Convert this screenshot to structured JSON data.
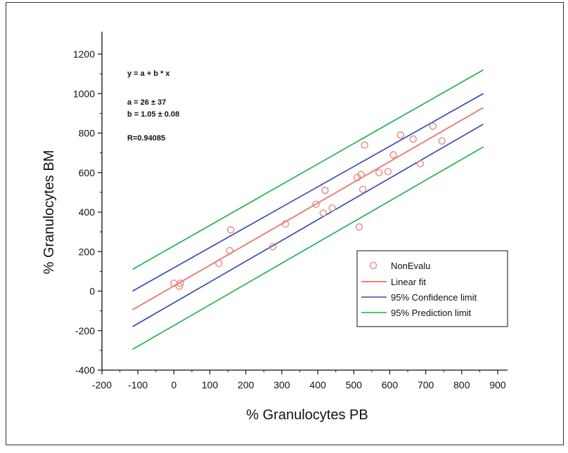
{
  "chart_data": {
    "type": "scatter",
    "xlabel": "% Granulocytes PB",
    "ylabel": "% Granulocytes BM",
    "xlim": [
      -200,
      900
    ],
    "ylim": [
      -400,
      1200
    ],
    "xticks": [
      -200,
      -100,
      0,
      100,
      200,
      300,
      400,
      500,
      600,
      700,
      800,
      900
    ],
    "yticks": [
      -400,
      -200,
      0,
      200,
      400,
      600,
      800,
      1000,
      1200
    ],
    "annotations": {
      "equation": "y = a + b * x",
      "a": "a = 26 ± 37",
      "b": "b = 1.05 ± 0.08",
      "r": "R=0.94085"
    },
    "legend_position": "bottom-right",
    "series": [
      {
        "name": "NonEvalu",
        "kind": "points",
        "color": "#e8807a",
        "points": [
          [
            0,
            40
          ],
          [
            15,
            25
          ],
          [
            18,
            40
          ],
          [
            125,
            140
          ],
          [
            155,
            205
          ],
          [
            158,
            310
          ],
          [
            275,
            225
          ],
          [
            310,
            340
          ],
          [
            395,
            440
          ],
          [
            415,
            395
          ],
          [
            420,
            510
          ],
          [
            440,
            420
          ],
          [
            510,
            575
          ],
          [
            515,
            325
          ],
          [
            520,
            590
          ],
          [
            525,
            515
          ],
          [
            530,
            740
          ],
          [
            570,
            600
          ],
          [
            595,
            605
          ],
          [
            610,
            690
          ],
          [
            630,
            790
          ],
          [
            665,
            770
          ],
          [
            685,
            645
          ],
          [
            720,
            835
          ],
          [
            745,
            760
          ]
        ]
      },
      {
        "name": "Linear fit",
        "kind": "line",
        "color": "#e8827a",
        "intercept": 26,
        "slope": 1.05
      },
      {
        "name": "95% Confidence limit",
        "kind": "band",
        "color": "#3344bb",
        "upper": [
          [
            -115,
            0
          ],
          [
            860,
            1000
          ]
        ],
        "lower": [
          [
            -115,
            -180
          ],
          [
            860,
            845
          ]
        ]
      },
      {
        "name": "95% Prediction limit",
        "kind": "band",
        "color": "#16b04a",
        "upper": [
          [
            -115,
            110
          ],
          [
            860,
            1120
          ]
        ],
        "lower": [
          [
            -115,
            -295
          ],
          [
            860,
            730
          ]
        ]
      }
    ]
  },
  "colors": {
    "axis": "#111111",
    "background": "#ffffff"
  }
}
